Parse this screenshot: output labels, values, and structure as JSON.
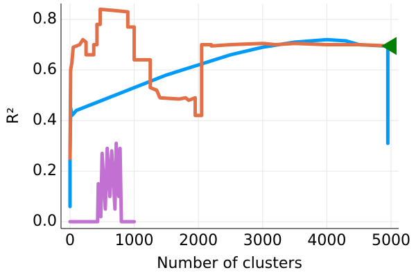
{
  "chart_data": {
    "type": "line",
    "xlabel": "Number of clusters",
    "ylabel": "R²",
    "xlim": [
      -140,
      5119
    ],
    "ylim": [
      -0.027,
      0.863
    ],
    "xticks": [
      0,
      1000,
      2000,
      3000,
      4000,
      5000
    ],
    "yticks": [
      {
        "value": 0,
        "label": "0.0"
      },
      0.2,
      0.4,
      0.6,
      0.8
    ],
    "grid": true,
    "series": [
      {
        "color": "#009af9",
        "x": [
          0,
          0,
          10,
          30,
          100,
          200,
          400,
          700,
          1000,
          1500,
          2000,
          2500,
          3000,
          3500,
          4000,
          4300,
          4500,
          4900,
          4950,
          4950
        ],
        "values": [
          0.06,
          0.24,
          0.45,
          0.42,
          0.44,
          0.45,
          0.47,
          0.5,
          0.53,
          0.58,
          0.62,
          0.66,
          0.69,
          0.71,
          0.72,
          0.715,
          0.7,
          0.695,
          0.69,
          0.31
        ]
      },
      {
        "color": "#e26f46",
        "x": [
          0,
          10,
          30,
          50,
          150,
          200,
          250,
          250,
          370,
          370,
          420,
          420,
          470,
          470,
          700,
          900,
          900,
          1000,
          1000,
          1250,
          1250,
          1350,
          1400,
          1700,
          1800,
          1850,
          1950,
          1950,
          2050,
          2050,
          2200,
          2200,
          2500,
          3000,
          3200,
          3500,
          4000,
          4500,
          5000
        ],
        "values": [
          0.25,
          0.6,
          0.63,
          0.69,
          0.7,
          0.72,
          0.71,
          0.66,
          0.66,
          0.7,
          0.7,
          0.78,
          0.78,
          0.84,
          0.835,
          0.83,
          0.77,
          0.77,
          0.64,
          0.64,
          0.53,
          0.52,
          0.49,
          0.485,
          0.49,
          0.48,
          0.49,
          0.42,
          0.42,
          0.7,
          0.7,
          0.695,
          0.7,
          0.705,
          0.7,
          0.705,
          0.7,
          0.7,
          0.695
        ]
      },
      {
        "color": "#c271d2",
        "x": [
          0,
          430,
          440,
          480,
          500,
          550,
          580,
          620,
          650,
          700,
          720,
          760,
          780,
          800,
          1000
        ],
        "values": [
          0,
          0,
          0.15,
          0.02,
          0.27,
          0.05,
          0.29,
          0.1,
          0.28,
          0.05,
          0.31,
          0.1,
          0.29,
          0,
          0
        ]
      },
      {
        "color": "#008000",
        "marker": "triangle-left",
        "x": [
          5000
        ],
        "values": [
          0.695
        ]
      }
    ]
  }
}
